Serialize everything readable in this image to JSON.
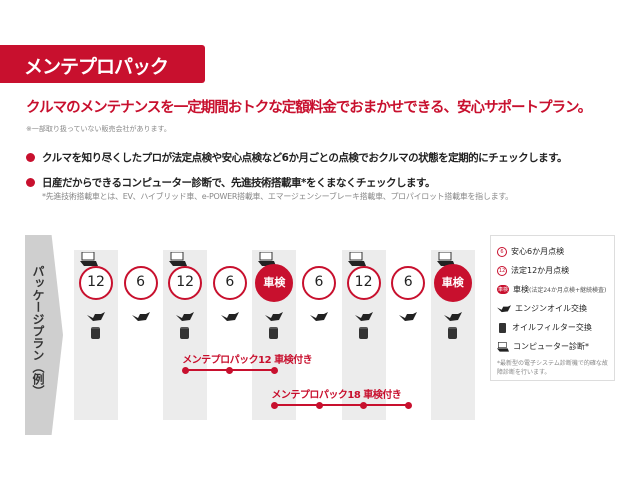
{
  "header": {
    "title": "メンテプロパック"
  },
  "lead": "クルマのメンテナンスを一定期間おトクな定額料金でおまかせできる、安心サポートプラン。",
  "note": "※一部取り扱っていない販売会社があります。",
  "bullets": [
    "クルマを知り尽くしたプロが法定点検や安心点検など6か月ごとの点検でおクルマの状態を定期的にチェックします。",
    "日産だからできるコンピューター診断で、先進技術搭載車*をくまなくチェックします。"
  ],
  "bullet_sub": "*先進技術搭載車とは、EV、ハイブリッド車、e-POWER搭載車、エマージェンシーブレーキ搭載車、プロパイロット搭載車を指します。",
  "side_label": "パッケージプラン（例）",
  "timeline": [
    {
      "label": "12",
      "type": "legal",
      "computer": true,
      "oil": true,
      "filter": true
    },
    {
      "label": "6",
      "type": "safety",
      "computer": false,
      "oil": true,
      "filter": false
    },
    {
      "label": "12",
      "type": "legal",
      "computer": true,
      "oil": true,
      "filter": true
    },
    {
      "label": "6",
      "type": "safety",
      "computer": false,
      "oil": true,
      "filter": false
    },
    {
      "label": "車検",
      "type": "shaken",
      "computer": true,
      "oil": true,
      "filter": true
    },
    {
      "label": "6",
      "type": "safety",
      "computer": false,
      "oil": true,
      "filter": false
    },
    {
      "label": "12",
      "type": "legal",
      "computer": true,
      "oil": true,
      "filter": true
    },
    {
      "label": "6",
      "type": "safety",
      "computer": false,
      "oil": true,
      "filter": false
    },
    {
      "label": "車検",
      "type": "shaken",
      "computer": true,
      "oil": true,
      "filter": true
    }
  ],
  "plans": [
    {
      "label": "メンテプロパック12 車検付き",
      "start_col": 2,
      "end_col": 4
    },
    {
      "label": "メンテプロパック18 車検付き",
      "start_col": 4,
      "end_col": 7
    }
  ],
  "legend": {
    "safety_icon": "6",
    "safety": "安心6か月点検",
    "legal_icon": "12",
    "legal": "法定12か月点検",
    "shaken_icon": "車検",
    "shaken": "車検",
    "shaken_sub": "(法定24か月点検+継続検査)",
    "oil": "エンジンオイル交換",
    "filter": "オイルフィルター交換",
    "computer": "コンピューター診断*",
    "note": "*最新型の電子システム診断機で的確な故障診断を行います。"
  },
  "colors": {
    "accent": "#c8102e",
    "column_gray": "#ececec"
  }
}
